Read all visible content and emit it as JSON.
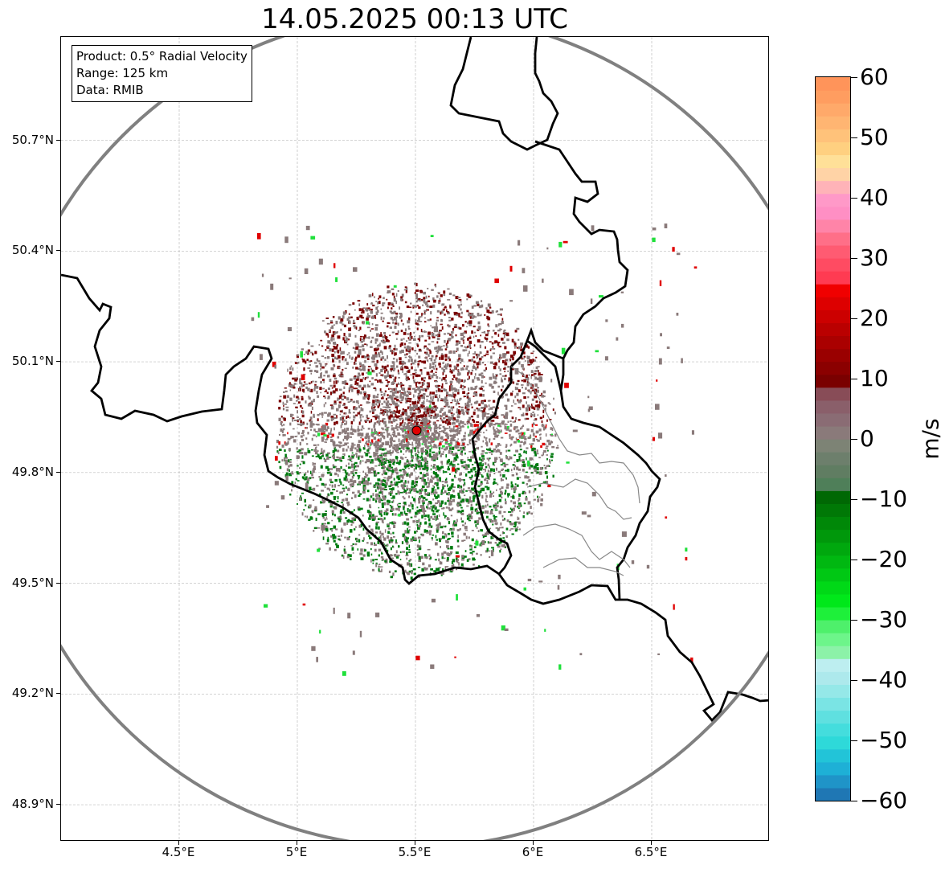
{
  "title": "14.05.2025 00:13 UTC",
  "info_box": {
    "product": "Product: 0.5° Radial Velocity",
    "range": "Range: 125 km",
    "data": "Data: RMIB"
  },
  "lat_labels": [
    "50.7°N",
    "50.4°N",
    "50.1°N",
    "49.8°N",
    "49.5°N",
    "49.2°N",
    "48.9°N"
  ],
  "lat_values": [
    50.7,
    50.4,
    50.1,
    49.8,
    49.5,
    49.2,
    48.9
  ],
  "lon_labels": [
    "4.5°E",
    "5°E",
    "5.5°E",
    "6°E",
    "6.5°E"
  ],
  "lon_values": [
    4.5,
    5.0,
    5.5,
    6.0,
    6.5
  ],
  "map_extent": {
    "lon_min": 4.0,
    "lon_max": 7.0,
    "lat_min": 48.8,
    "lat_max": 50.98
  },
  "radar_site": {
    "lon": 5.505,
    "lat": 49.914,
    "color": "#e00000"
  },
  "range_ring_color": "#808080",
  "colorbar": {
    "unit": "m/s",
    "min": -60,
    "max": 60,
    "tick_values": [
      60,
      50,
      40,
      30,
      20,
      10,
      0,
      -10,
      -20,
      -30,
      -40,
      -50,
      -60
    ],
    "tick_labels": [
      "60",
      "50",
      "40",
      "30",
      "20",
      "10",
      "0",
      "−10",
      "−20",
      "−30",
      "−40",
      "−50",
      "−60"
    ],
    "colors_bottom_to_top": [
      "#1f77b4",
      "#1f94c8",
      "#1eb0d6",
      "#22c4d8",
      "#2ed9d9",
      "#44dddd",
      "#5fe0e0",
      "#7ae4e4",
      "#95e8e8",
      "#ade9ec",
      "#bdeef0",
      "#8cf2a8",
      "#6df58a",
      "#4ef06b",
      "#1ef03a",
      "#00e81a",
      "#00d917",
      "#00c814",
      "#00b811",
      "#00a80e",
      "#00980b",
      "#008808",
      "#007806",
      "#006804",
      "#4f7f59",
      "#607d62",
      "#6d7f6c",
      "#7d8375",
      "#8a7a7a",
      "#8a6c74",
      "#8a5f6a",
      "#884c57",
      "#7a0000",
      "#8b0000",
      "#9a0000",
      "#aa0000",
      "#ba0000",
      "#cc0000",
      "#dd0000",
      "#f00000",
      "#ff3b52",
      "#ff4b62",
      "#ff5b72",
      "#ff6f88",
      "#ff84a8",
      "#ff8fc4",
      "#ff99c8",
      "#ffb3b8",
      "#ffd3a6",
      "#ffe098",
      "#ffd080",
      "#ffc27a",
      "#ffb572",
      "#ffa96a",
      "#ff9d60",
      "#ff945a"
    ]
  },
  "echo_summary": {
    "approaching_color": "#007a10",
    "receding_color": "#7a0000",
    "near_zero_color": "#8a7a7a"
  }
}
